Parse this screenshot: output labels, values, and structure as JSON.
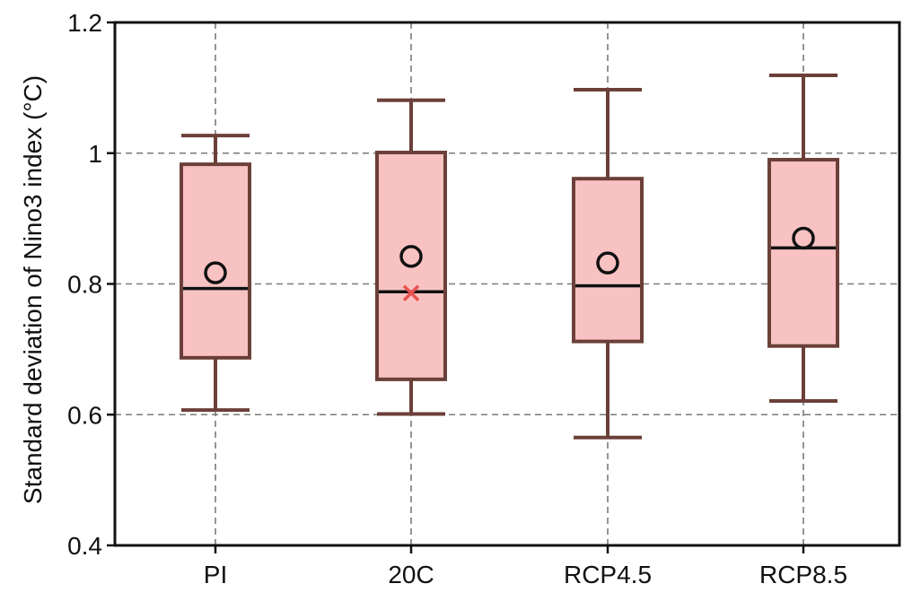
{
  "chart_data": {
    "type": "box",
    "title": "",
    "xlabel": "",
    "ylabel": "Standard deviation of Nino3 index (°C)",
    "ylim": [
      0.4,
      1.2
    ],
    "yticks": [
      0.4,
      0.6,
      0.8,
      1.0,
      1.2
    ],
    "ytick_labels": [
      "0.4",
      "0.6",
      "0.8",
      "1",
      "1.2"
    ],
    "grid": true,
    "categories": [
      "PI",
      "20C",
      "RCP4.5",
      "RCP8.5"
    ],
    "boxes": [
      {
        "category": "PI",
        "whisker_low": 0.607,
        "q1": 0.687,
        "median": 0.793,
        "q3": 0.983,
        "whisker_high": 1.027,
        "mean": 0.817
      },
      {
        "category": "20C",
        "whisker_low": 0.601,
        "q1": 0.654,
        "median": 0.788,
        "q3": 1.001,
        "whisker_high": 1.081,
        "mean": 0.842
      },
      {
        "category": "RCP4.5",
        "whisker_low": 0.565,
        "q1": 0.712,
        "median": 0.797,
        "q3": 0.961,
        "whisker_high": 1.097,
        "mean": 0.832
      },
      {
        "category": "RCP8.5",
        "whisker_low": 0.621,
        "q1": 0.705,
        "median": 0.855,
        "q3": 0.99,
        "whisker_high": 1.119,
        "mean": 0.87
      }
    ],
    "markers": [
      {
        "category": "20C",
        "y": 0.786,
        "symbol": "x",
        "color": "#e8524f"
      }
    ],
    "colors": {
      "box_fill": "#f9c2c2",
      "box_edge": "#6b4039",
      "median": "#111111",
      "mean_marker": "#111111",
      "grid": "#7a7a7a",
      "frame": "#111111"
    }
  }
}
